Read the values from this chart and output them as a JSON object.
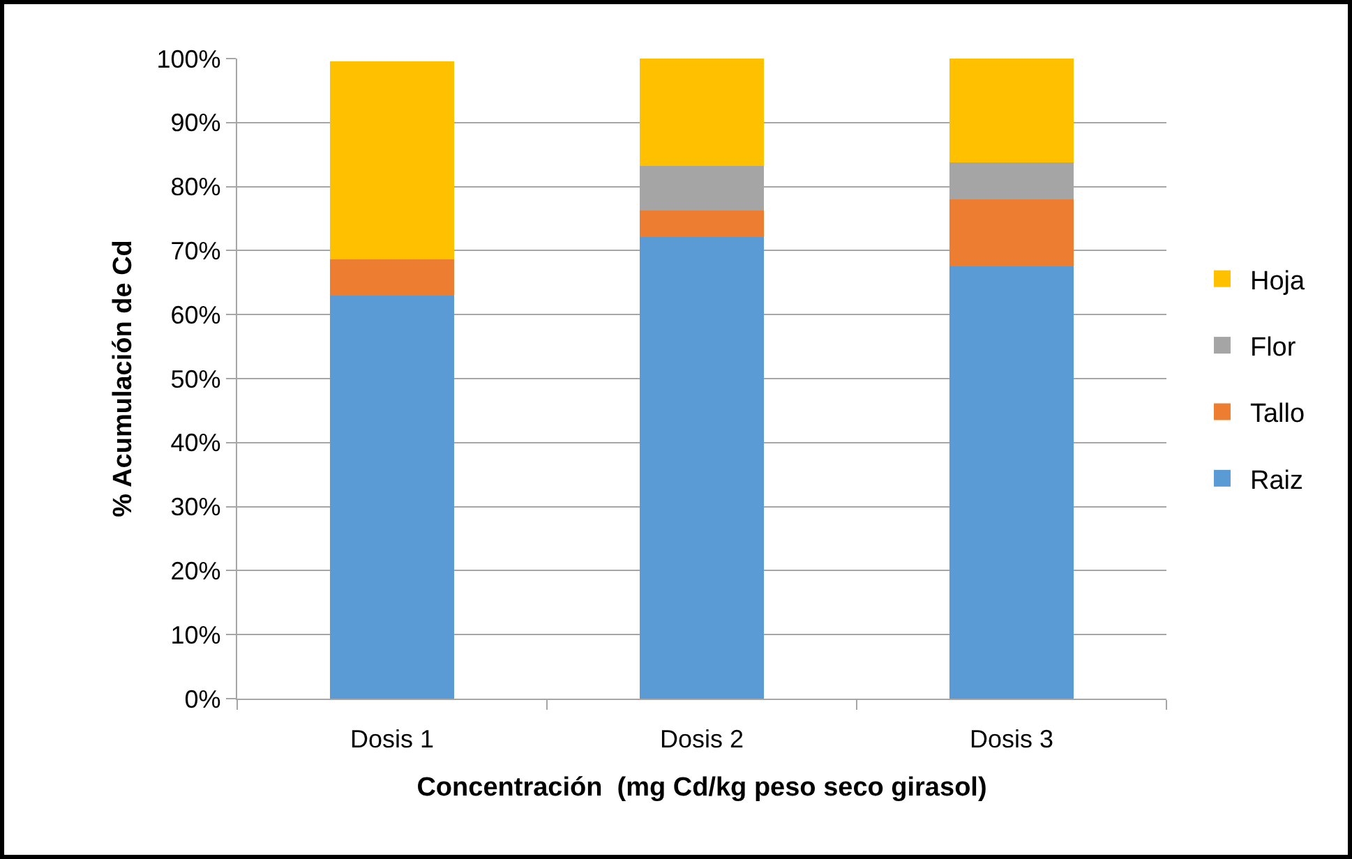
{
  "chart_data": {
    "type": "bar",
    "stacked": true,
    "xlabel": "Concentración  (mg Cd/kg peso seco girasol)",
    "ylabel": "% Acumulación de Cd",
    "categories": [
      "Dosis 1",
      "Dosis 2",
      "Dosis 3"
    ],
    "series": [
      {
        "name": "Raiz",
        "color": "#5b9bd5",
        "values": [
          63.0,
          72.1,
          67.5
        ]
      },
      {
        "name": "Tallo",
        "color": "#ed7d31",
        "values": [
          5.6,
          4.1,
          10.5
        ]
      },
      {
        "name": "Flor",
        "color": "#a5a5a5",
        "values": [
          0,
          7.0,
          5.8
        ]
      },
      {
        "name": "Hoja",
        "color": "#ffc000",
        "values": [
          31.0,
          16.8,
          16.2
        ]
      }
    ],
    "ylim": [
      0,
      100
    ],
    "yticks": [
      {
        "value": 0,
        "label": "0%"
      },
      {
        "value": 10,
        "label": "10%"
      },
      {
        "value": 20,
        "label": "20%"
      },
      {
        "value": 30,
        "label": "30%"
      },
      {
        "value": 40,
        "label": "40%"
      },
      {
        "value": 50,
        "label": "50%"
      },
      {
        "value": 60,
        "label": "60%"
      },
      {
        "value": 70,
        "label": "70%"
      },
      {
        "value": 80,
        "label": "80%"
      },
      {
        "value": 90,
        "label": "90%"
      },
      {
        "value": 100,
        "label": "100%"
      }
    ],
    "grid": "y",
    "legend": "right"
  }
}
